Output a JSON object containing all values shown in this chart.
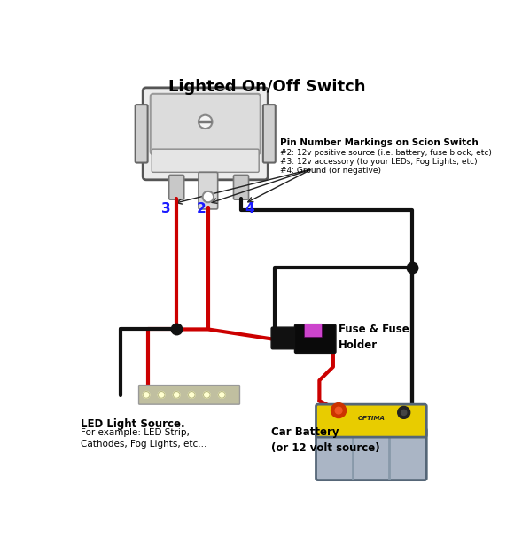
{
  "title": "Lighted On/Off Switch",
  "bg_color": "#ffffff",
  "pin_label_color": "#1a1aff",
  "text_color": "#000000",
  "wire_red": "#cc0000",
  "wire_black": "#111111",
  "annotations": {
    "pin_header": "Pin Number Markings on Scion Switch",
    "pin2": "#2: 12v positive source (i.e. battery, fuse block, etc)",
    "pin3": "#3: 12v accessory (to your LEDs, Fog Lights, etc)",
    "pin4": "#4: Ground (or negative)"
  },
  "fuse_label": "Fuse & Fuse\nHolder",
  "battery_label": "Car Battery\n(or 12 volt source)",
  "led_label_bold": "LED Light Source.",
  "led_label_normal": "For example: LED Strip,\nCathodes, Fog Lights, etc..."
}
